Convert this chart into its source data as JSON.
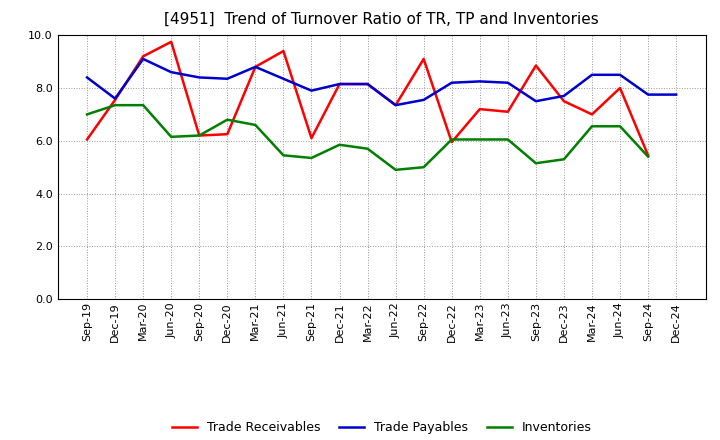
{
  "title": "[4951]  Trend of Turnover Ratio of TR, TP and Inventories",
  "x_labels": [
    "Sep-19",
    "Dec-19",
    "Mar-20",
    "Jun-20",
    "Sep-20",
    "Dec-20",
    "Mar-21",
    "Jun-21",
    "Sep-21",
    "Dec-21",
    "Mar-22",
    "Jun-22",
    "Sep-22",
    "Dec-22",
    "Mar-23",
    "Jun-23",
    "Sep-23",
    "Dec-23",
    "Mar-24",
    "Jun-24",
    "Sep-24",
    "Dec-24"
  ],
  "trade_receivables": [
    6.05,
    7.55,
    9.2,
    9.75,
    6.2,
    6.25,
    8.8,
    9.4,
    6.1,
    8.15,
    8.15,
    7.35,
    9.1,
    5.95,
    7.2,
    7.1,
    8.85,
    7.5,
    7.0,
    8.0,
    5.45,
    null
  ],
  "trade_payables": [
    8.4,
    7.6,
    9.1,
    8.6,
    8.4,
    8.35,
    8.8,
    8.35,
    7.9,
    8.15,
    8.15,
    7.35,
    7.55,
    8.2,
    8.25,
    8.2,
    7.5,
    7.7,
    8.5,
    8.5,
    7.75,
    7.75
  ],
  "inventories": [
    7.0,
    7.35,
    7.35,
    6.15,
    6.2,
    6.8,
    6.6,
    5.45,
    5.35,
    5.85,
    5.7,
    4.9,
    5.0,
    6.05,
    6.05,
    6.05,
    5.15,
    5.3,
    6.55,
    6.55,
    5.4,
    null
  ],
  "ylim": [
    0.0,
    10.0
  ],
  "yticks": [
    0.0,
    2.0,
    4.0,
    6.0,
    8.0,
    10.0
  ],
  "color_tr": "#ff0000",
  "color_tp": "#0000cc",
  "color_inv": "#008000",
  "linewidth": 1.8,
  "legend_labels": [
    "Trade Receivables",
    "Trade Payables",
    "Inventories"
  ],
  "background_color": "#ffffff",
  "grid_color": "#999999",
  "title_fontsize": 11,
  "tick_fontsize": 8,
  "legend_fontsize": 9
}
